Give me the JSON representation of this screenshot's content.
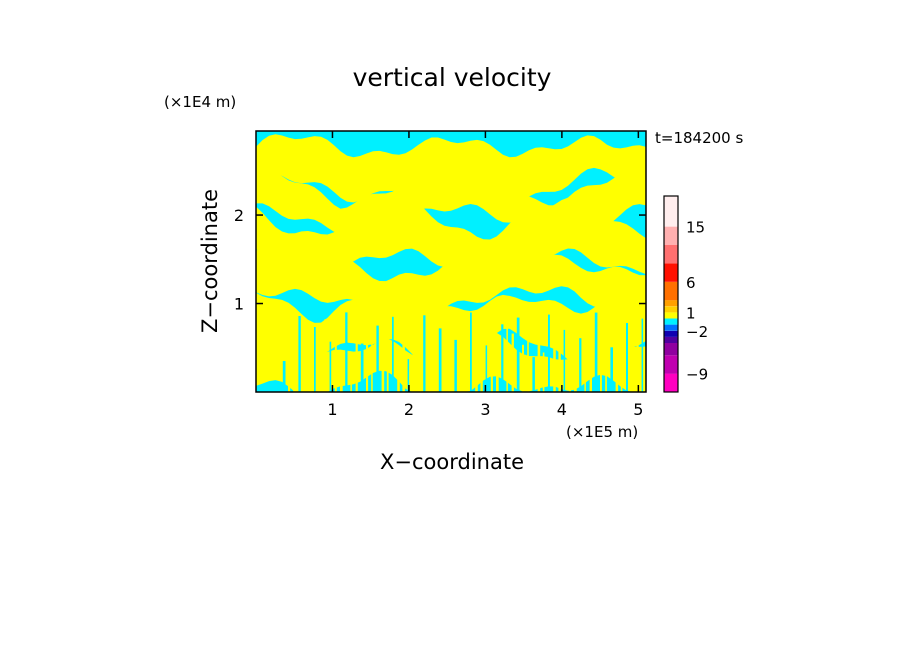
{
  "chart_data": {
    "type": "heatmap",
    "title": "vertical velocity",
    "xlabel": "X−coordinate",
    "ylabel": "Z−coordinate",
    "x_unit": "(×1E5 m)",
    "y_unit": "(×1E4 m)",
    "time_label": "t=184200 s",
    "xlim": [
      0,
      5.1
    ],
    "ylim": [
      0,
      2.95
    ],
    "x_ticks": [
      {
        "value": 1,
        "label": "1"
      },
      {
        "value": 2,
        "label": "2"
      },
      {
        "value": 3,
        "label": "3"
      },
      {
        "value": 4,
        "label": "4"
      },
      {
        "value": 5,
        "label": "5"
      }
    ],
    "y_ticks": [
      {
        "value": 1,
        "label": "1"
      },
      {
        "value": 2,
        "label": "2"
      }
    ],
    "field_colors": {
      "negative": "#00f0ff",
      "positive": "#ffff00"
    },
    "colorbar": {
      "labels": [
        {
          "value": 15,
          "label": "15"
        },
        {
          "value": 6,
          "label": "6"
        },
        {
          "value": 1,
          "label": "1"
        },
        {
          "value": -2,
          "label": "−2"
        },
        {
          "value": -9,
          "label": "−9"
        }
      ],
      "levels": [
        {
          "from": -12,
          "to": -9,
          "color": "#ff00c0"
        },
        {
          "from": -9,
          "to": -6,
          "color": "#c000b0"
        },
        {
          "from": -6,
          "to": -4,
          "color": "#9000a0"
        },
        {
          "from": -4,
          "to": -3,
          "color": "#5000a0"
        },
        {
          "from": -3,
          "to": -2,
          "color": "#1000b0"
        },
        {
          "from": -2,
          "to": -1,
          "color": "#0070ff"
        },
        {
          "from": -1,
          "to": 0,
          "color": "#00f0ff"
        },
        {
          "from": 0,
          "to": 1,
          "color": "#ffff00"
        },
        {
          "from": 1,
          "to": 2,
          "color": "#ffd000"
        },
        {
          "from": 2,
          "to": 3,
          "color": "#ffa000"
        },
        {
          "from": 3,
          "to": 6,
          "color": "#ff7000"
        },
        {
          "from": 6,
          "to": 9,
          "color": "#ff1000"
        },
        {
          "from": 9,
          "to": 12,
          "color": "#ff7070"
        },
        {
          "from": 12,
          "to": 15,
          "color": "#ffb0b0"
        },
        {
          "from": 15,
          "to": 20,
          "color": "#ffeeee"
        }
      ]
    }
  }
}
